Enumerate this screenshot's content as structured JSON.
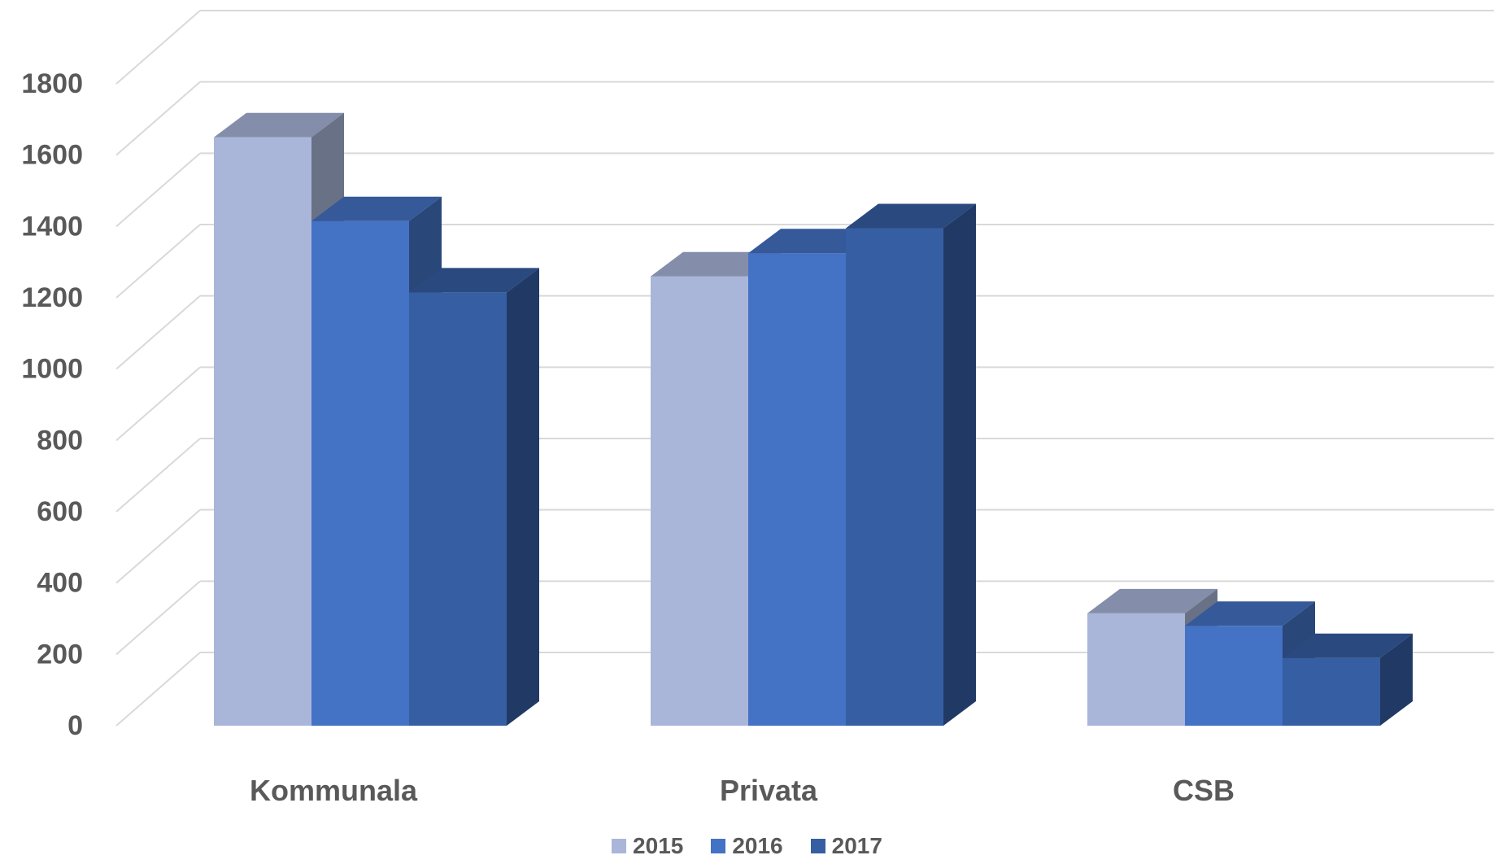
{
  "chart_data": {
    "type": "bar",
    "variant": "3d-clustered-column",
    "title": "",
    "xlabel": "",
    "ylabel": "",
    "categories": [
      "Kommunala",
      "Privata",
      "CSB"
    ],
    "series": [
      {
        "name": "2015",
        "values": [
          1650,
          1260,
          315
        ],
        "color": "#A9B6DA"
      },
      {
        "name": "2016",
        "values": [
          1415,
          1325,
          280
        ],
        "color": "#4472C4"
      },
      {
        "name": "2017",
        "values": [
          1215,
          1395,
          190
        ],
        "color": "#365EA3"
      }
    ],
    "ylim": [
      0,
      1800
    ],
    "yticks": [
      0,
      200,
      400,
      600,
      800,
      1000,
      1200,
      1400,
      1600,
      1800
    ],
    "grid": true,
    "legend": "bottom"
  }
}
